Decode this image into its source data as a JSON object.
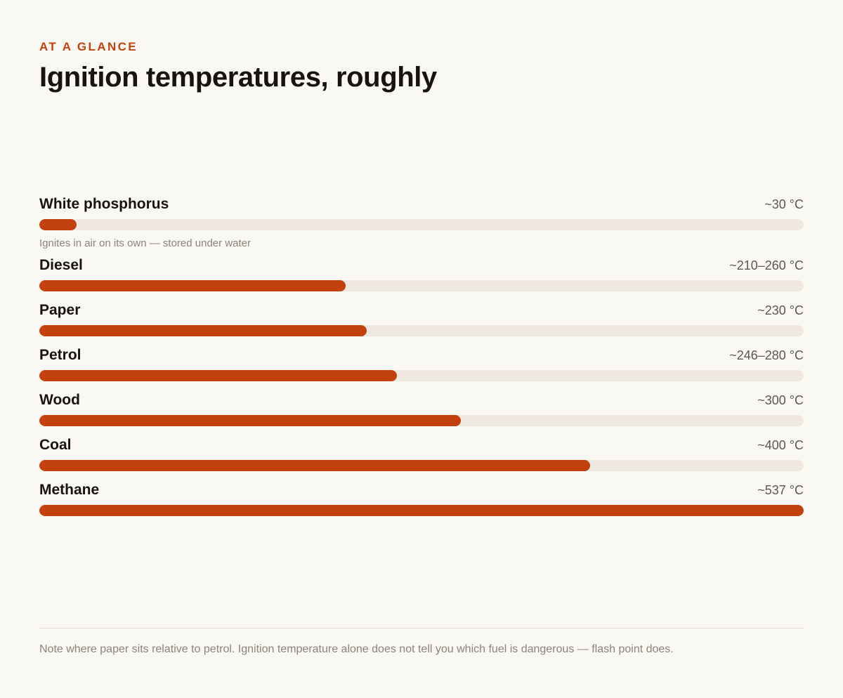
{
  "eyebrow": "AT A GLANCE",
  "title": "Ignition temperatures, roughly",
  "footnote": "Note where paper sits relative to petrol. Ignition temperature alone does not tell you which fuel is dangerous — flash point does.",
  "colors": {
    "accent": "#c2410c",
    "track": "#eee8df",
    "background": "#faf8f3"
  },
  "chart_data": {
    "type": "bar",
    "orientation": "horizontal",
    "title": "Ignition temperatures, roughly",
    "unit": "°C",
    "xlim": [
      0,
      537
    ],
    "categories": [
      "White phosphorus",
      "Diesel",
      "Paper",
      "Petrol",
      "Wood",
      "Coal",
      "Methane"
    ],
    "values": [
      26,
      215,
      230,
      251,
      296,
      387,
      537
    ],
    "value_labels": [
      "~30 °C",
      "~210–260 °C",
      "~230 °C",
      "~246–280 °C",
      "~300 °C",
      "~400 °C",
      "~537 °C"
    ],
    "notes": [
      "Ignites in air on its own — stored under water",
      "",
      "",
      "",
      "",
      "",
      ""
    ]
  }
}
